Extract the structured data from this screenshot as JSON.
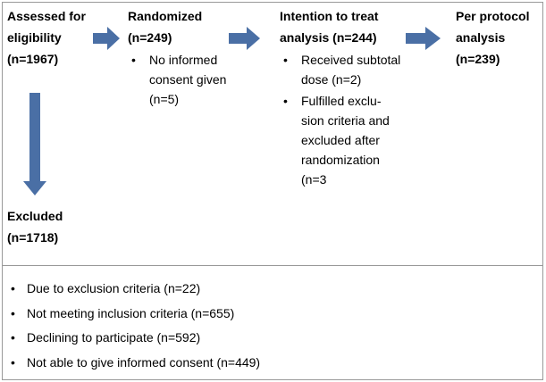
{
  "nodes": [
    {
      "title": [
        "Assessed for",
        "eligibility",
        "(n=1967)"
      ]
    },
    {
      "title": [
        "Randomized",
        "(n=249)"
      ],
      "bullets": [
        [
          "No informed",
          "consent given",
          "(n=5)"
        ]
      ]
    },
    {
      "title": [
        "Intention to treat",
        "analysis (n=244)"
      ],
      "bullets": [
        [
          "Received subtotal",
          "dose (n=2)"
        ],
        [
          "Fulfilled exclu-",
          "sion criteria and",
          "excluded after",
          "randomization",
          "(n=3"
        ]
      ]
    },
    {
      "title": [
        "Per protocol",
        "analysis",
        "(n=239)"
      ]
    },
    {
      "title": [
        "Excluded",
        "(n=1718)"
      ]
    }
  ],
  "excluded_reasons": [
    "Due to exclusion criteria (n=22)",
    "Not meeting inclusion criteria (n=655)",
    "Declining to participate (n=592)",
    "Not able to give informed consent (n=449)"
  ]
}
